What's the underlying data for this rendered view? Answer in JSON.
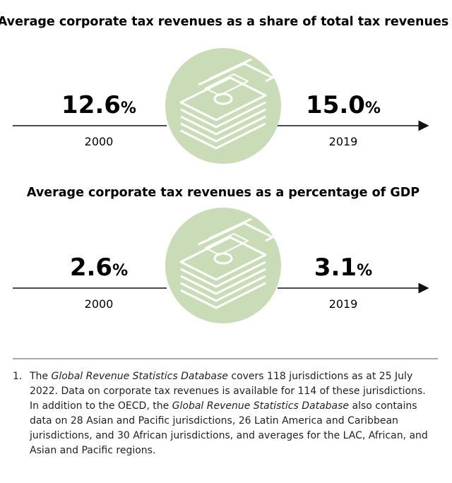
{
  "panels": [
    {
      "title": "Average corporate tax revenues as a share of total tax revenues",
      "start": {
        "value": "12.6",
        "unit": "%",
        "year": "2000"
      },
      "end": {
        "value": "15.0",
        "unit": "%",
        "year": "2019"
      }
    },
    {
      "title": "Average corporate tax revenues as a percentage of GDP",
      "start": {
        "value": "2.6",
        "unit": "%",
        "year": "2000"
      },
      "end": {
        "value": "3.1",
        "unit": "%",
        "year": "2019"
      }
    }
  ],
  "footnote": {
    "number": "1.",
    "parts": [
      "The ",
      "Global Revenue Statistics Database",
      " covers 118 jurisdictions as at 25 July 2022. Data on corporate tax revenues is available for 114 of these jurisdictions.",
      "In addition to the OECD, the ",
      "Global Revenue Statistics Database",
      " also contains data on 28 Asian and Pacific jurisdictions, 26 Latin America and Caribbean jurisdictions, and 30 African jurisdictions, and averages for the LAC, African, and Asian and Pacific regions."
    ]
  }
}
